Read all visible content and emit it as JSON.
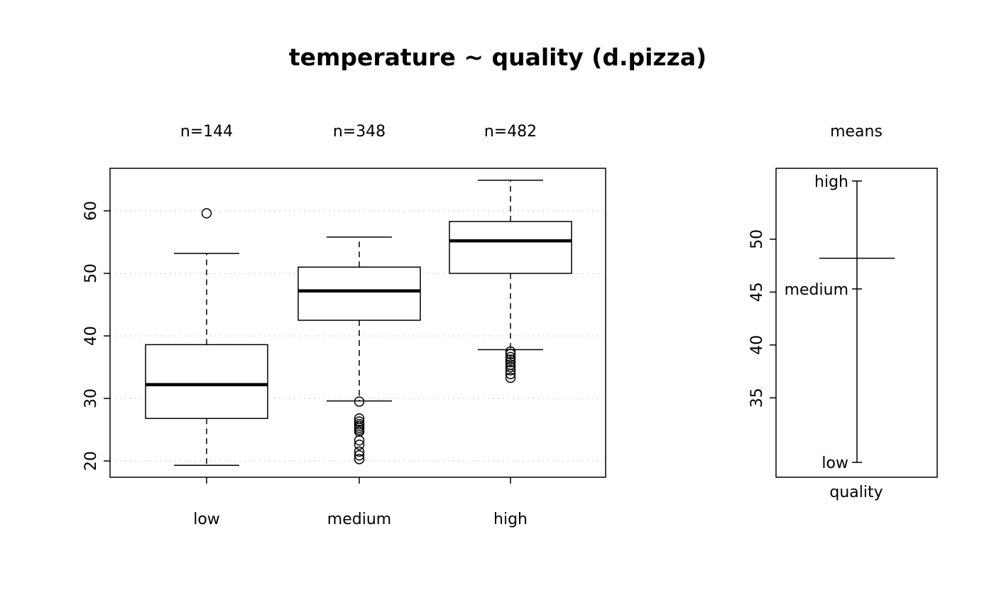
{
  "page": {
    "background": "#ffffff"
  },
  "title": "temperature ~ quality (d.pizza)",
  "chart_data": [
    {
      "type": "boxplot",
      "panel": "main",
      "title": "temperature ~ quality (d.pizza)",
      "categories": [
        "low",
        "medium",
        "high"
      ],
      "count_labels": [
        "n=144",
        "n=348",
        "n=482"
      ],
      "ylim": [
        17.4,
        66.8
      ],
      "yticks": [
        20,
        30,
        40,
        50,
        60
      ],
      "grid": {
        "horizontal": true,
        "style": "dotted",
        "color": "#d8d8d8"
      },
      "groups": [
        {
          "label": "low",
          "n": 144,
          "whisker_low": 19.3,
          "q1": 26.8,
          "median": 32.2,
          "q3": 38.6,
          "whisker_high": 53.2,
          "outliers": [
            59.6
          ]
        },
        {
          "label": "medium",
          "n": 348,
          "whisker_low": 29.6,
          "q1": 42.5,
          "median": 47.2,
          "q3": 51.0,
          "whisker_high": 55.8,
          "outliers": [
            29.5,
            26.8,
            26.3,
            25.9,
            25.6,
            25.3,
            25.0,
            24.7,
            23.3,
            22.6,
            21.5,
            20.9,
            20.3
          ]
        },
        {
          "label": "high",
          "n": 482,
          "whisker_low": 37.8,
          "q1": 50.0,
          "median": 55.2,
          "q3": 58.3,
          "whisker_high": 64.9,
          "outliers": [
            37.5,
            37.1,
            36.6,
            36.2,
            35.8,
            35.4,
            35.0,
            34.5,
            33.9,
            33.3
          ]
        }
      ]
    },
    {
      "type": "means",
      "panel": "side",
      "title": "means",
      "xlabel": "quality",
      "ylim": [
        27.5,
        56.7
      ],
      "yticks": [
        35,
        40,
        45,
        50
      ],
      "means": [
        {
          "label": "high",
          "value": 55.5
        },
        {
          "label": "medium",
          "value": 45.3
        },
        {
          "label": "low",
          "value": 28.9
        }
      ],
      "grand_mean": 48.2
    }
  ]
}
